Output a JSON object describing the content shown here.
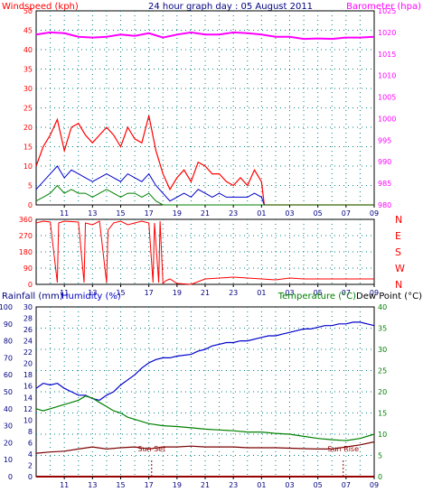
{
  "title": "24 hour graph day : 05 August 2011",
  "colors": {
    "red": "#ff0000",
    "blue": "#0000cc",
    "green": "#008000",
    "magenta": "#ff00ff",
    "black": "#000000",
    "grid": "#008080",
    "brown": "#7a0000",
    "darkred": "#990000",
    "navy": "#000080"
  },
  "chart_data": [
    {
      "id": "wind",
      "type": "line",
      "title": "24 hour graph day : 05 August 2011",
      "left_label": "Windspeed (kph)",
      "right_label": "Barometer (hpa)",
      "x_ticks": [
        "11",
        "13",
        "15",
        "17",
        "19",
        "21",
        "23",
        "01",
        "03",
        "05",
        "07",
        "09"
      ],
      "y_left_ticks": [
        0,
        5,
        10,
        15,
        20,
        25,
        30,
        35,
        40,
        45,
        50
      ],
      "y_right_ticks": [
        980,
        985,
        990,
        995,
        1000,
        1005,
        1010,
        1015,
        1020,
        1025
      ],
      "ylim_left": [
        0,
        50
      ],
      "ylim_right": [
        980,
        1025
      ],
      "series_note": "x in hours since 09:00 (0-24)",
      "gust_max": [
        [
          0,
          10
        ],
        [
          0.5,
          15
        ],
        [
          1,
          18
        ],
        [
          1.5,
          22
        ],
        [
          2,
          14
        ],
        [
          2.5,
          20
        ],
        [
          3,
          21
        ],
        [
          3.5,
          18
        ],
        [
          4,
          16
        ],
        [
          4.5,
          18
        ],
        [
          5,
          20
        ],
        [
          5.5,
          18
        ],
        [
          6,
          15
        ],
        [
          6.5,
          20
        ],
        [
          7,
          17
        ],
        [
          7.5,
          16
        ],
        [
          8,
          23
        ],
        [
          8.5,
          14
        ],
        [
          9,
          8
        ],
        [
          9.5,
          4
        ],
        [
          10,
          7
        ],
        [
          10.5,
          9
        ],
        [
          11,
          6
        ],
        [
          11.5,
          11
        ],
        [
          12,
          10
        ],
        [
          12.5,
          8
        ],
        [
          13,
          8
        ],
        [
          13.5,
          6
        ],
        [
          14,
          5
        ],
        [
          14.5,
          7
        ],
        [
          15,
          5
        ],
        [
          15.5,
          9
        ],
        [
          16,
          6
        ],
        [
          16.2,
          0
        ],
        [
          24,
          0
        ]
      ],
      "avg_wind": [
        [
          0,
          4
        ],
        [
          0.5,
          6
        ],
        [
          1,
          8
        ],
        [
          1.5,
          10
        ],
        [
          2,
          7
        ],
        [
          2.5,
          9
        ],
        [
          3,
          8
        ],
        [
          3.5,
          7
        ],
        [
          4,
          6
        ],
        [
          4.5,
          7
        ],
        [
          5,
          8
        ],
        [
          5.5,
          7
        ],
        [
          6,
          6
        ],
        [
          6.5,
          8
        ],
        [
          7,
          7
        ],
        [
          7.5,
          6
        ],
        [
          8,
          8
        ],
        [
          8.5,
          5
        ],
        [
          9,
          3
        ],
        [
          9.5,
          1
        ],
        [
          10,
          2
        ],
        [
          10.5,
          3
        ],
        [
          11,
          2
        ],
        [
          11.5,
          4
        ],
        [
          12,
          3
        ],
        [
          12.5,
          2
        ],
        [
          13,
          3
        ],
        [
          13.5,
          2
        ],
        [
          14,
          2
        ],
        [
          14.5,
          2
        ],
        [
          15,
          2
        ],
        [
          15.5,
          3
        ],
        [
          16,
          2
        ],
        [
          16.2,
          0
        ],
        [
          24,
          0
        ]
      ],
      "min_wind": [
        [
          0,
          1
        ],
        [
          0.5,
          2
        ],
        [
          1,
          3
        ],
        [
          1.5,
          5
        ],
        [
          2,
          3
        ],
        [
          2.5,
          4
        ],
        [
          3,
          3
        ],
        [
          3.5,
          3
        ],
        [
          4,
          2
        ],
        [
          4.5,
          3
        ],
        [
          5,
          4
        ],
        [
          5.5,
          3
        ],
        [
          6,
          2
        ],
        [
          6.5,
          3
        ],
        [
          7,
          3
        ],
        [
          7.5,
          2
        ],
        [
          8,
          3
        ],
        [
          8.5,
          1
        ],
        [
          9,
          0
        ],
        [
          24,
          0
        ]
      ],
      "barometer": [
        [
          0,
          1019.5
        ],
        [
          1,
          1020
        ],
        [
          2,
          1019.8
        ],
        [
          3,
          1019
        ],
        [
          4,
          1018.8
        ],
        [
          5,
          1019
        ],
        [
          6,
          1019.5
        ],
        [
          7,
          1019.2
        ],
        [
          8,
          1019.8
        ],
        [
          9,
          1018.8
        ],
        [
          10,
          1019.5
        ],
        [
          11,
          1020
        ],
        [
          12,
          1019.5
        ],
        [
          13,
          1019.5
        ],
        [
          14,
          1020
        ],
        [
          15,
          1019.8
        ],
        [
          16,
          1019.5
        ],
        [
          17,
          1019
        ],
        [
          18,
          1019
        ],
        [
          19,
          1018.5
        ],
        [
          20,
          1018.6
        ],
        [
          21,
          1018.5
        ],
        [
          22,
          1018.8
        ],
        [
          23,
          1018.8
        ],
        [
          24,
          1019
        ]
      ]
    },
    {
      "id": "direction",
      "type": "line",
      "left_ticks": [
        0,
        90,
        180,
        270,
        360
      ],
      "right_ticks": [
        "N",
        "W",
        "S",
        "E",
        "N"
      ],
      "x_ticks": [
        "11",
        "13",
        "15",
        "17",
        "19",
        "21",
        "23",
        "01",
        "03",
        "05",
        "07",
        "09"
      ],
      "ylim": [
        0,
        360
      ],
      "values": [
        [
          0,
          340
        ],
        [
          0.5,
          350
        ],
        [
          1,
          345
        ],
        [
          1.5,
          10
        ],
        [
          1.6,
          340
        ],
        [
          2,
          350
        ],
        [
          3,
          345
        ],
        [
          3.4,
          10
        ],
        [
          3.5,
          340
        ],
        [
          4,
          330
        ],
        [
          4.5,
          350
        ],
        [
          5,
          10
        ],
        [
          5.1,
          300
        ],
        [
          5.5,
          340
        ],
        [
          6,
          350
        ],
        [
          6.5,
          330
        ],
        [
          7,
          340
        ],
        [
          7.5,
          350
        ],
        [
          8,
          340
        ],
        [
          8.3,
          10
        ],
        [
          8.4,
          340
        ],
        [
          8.7,
          10
        ],
        [
          8.8,
          350
        ],
        [
          9,
          5
        ],
        [
          9.2,
          20
        ],
        [
          9.5,
          30
        ],
        [
          10,
          5
        ],
        [
          11,
          0
        ],
        [
          12,
          30
        ],
        [
          13,
          35
        ],
        [
          14,
          40
        ],
        [
          15,
          35
        ],
        [
          16,
          30
        ],
        [
          17,
          25
        ],
        [
          18,
          35
        ],
        [
          19,
          30
        ],
        [
          20,
          30
        ],
        [
          21,
          30
        ],
        [
          22,
          30
        ],
        [
          23,
          30
        ],
        [
          24,
          30
        ]
      ]
    },
    {
      "id": "temperature",
      "type": "line",
      "rain_label": "Rainfall (mm)",
      "humidity_label": "Humidity (%)",
      "temp_label": "Temperature (°C)",
      "dew_label": "Dew Point (°C)",
      "x_ticks": [
        "11",
        "13",
        "15",
        "17",
        "19",
        "21",
        "23",
        "01",
        "03",
        "05",
        "07",
        "09"
      ],
      "rain_ticks": [
        0,
        2,
        4,
        6,
        8,
        10,
        12,
        14,
        16,
        18,
        20,
        22,
        24,
        26,
        28,
        30
      ],
      "humidity_ticks": [
        0,
        10,
        20,
        30,
        40,
        50,
        60,
        70,
        80,
        90,
        100
      ],
      "temp_ticks": [
        0,
        5,
        10,
        15,
        20,
        25,
        30,
        35,
        40
      ],
      "ylim_temp": [
        0,
        40
      ],
      "ylim_humidity": [
        0,
        100
      ],
      "ylim_rain": [
        0,
        30
      ],
      "annotations": [
        {
          "text": "Sun Set",
          "x": 8.2
        },
        {
          "text": "Sun Rise",
          "x": 21.8
        }
      ],
      "humidity": [
        [
          0,
          52
        ],
        [
          0.5,
          55
        ],
        [
          1,
          54
        ],
        [
          1.5,
          55
        ],
        [
          2,
          52
        ],
        [
          2.5,
          50
        ],
        [
          3,
          48
        ],
        [
          3.5,
          48
        ],
        [
          4,
          46
        ],
        [
          4.5,
          45
        ],
        [
          5,
          48
        ],
        [
          5.5,
          50
        ],
        [
          6,
          54
        ],
        [
          6.5,
          57
        ],
        [
          7,
          60
        ],
        [
          7.5,
          64
        ],
        [
          8,
          67
        ],
        [
          8.5,
          69
        ],
        [
          9,
          70
        ],
        [
          9.5,
          70
        ],
        [
          10,
          71
        ],
        [
          11,
          72
        ],
        [
          11.5,
          74
        ],
        [
          12,
          75
        ],
        [
          12.5,
          77
        ],
        [
          13,
          78
        ],
        [
          13.5,
          79
        ],
        [
          14,
          79
        ],
        [
          14.5,
          80
        ],
        [
          15,
          80
        ],
        [
          16,
          82
        ],
        [
          16.5,
          83
        ],
        [
          17,
          83
        ],
        [
          17.5,
          84
        ],
        [
          18,
          85
        ],
        [
          18.5,
          86
        ],
        [
          19,
          87
        ],
        [
          19.5,
          87
        ],
        [
          20,
          88
        ],
        [
          20.5,
          89
        ],
        [
          21,
          89
        ],
        [
          21.5,
          90
        ],
        [
          22,
          90
        ],
        [
          22.5,
          91
        ],
        [
          23,
          91
        ],
        [
          23.5,
          90
        ],
        [
          24,
          89
        ]
      ],
      "temperature": [
        [
          0,
          16
        ],
        [
          0.5,
          15.5
        ],
        [
          1,
          16
        ],
        [
          1.5,
          16.5
        ],
        [
          2,
          17
        ],
        [
          2.5,
          17.5
        ],
        [
          3,
          18
        ],
        [
          3.5,
          19
        ],
        [
          4,
          18.5
        ],
        [
          4.5,
          17.5
        ],
        [
          5,
          16.5
        ],
        [
          5.5,
          15.5
        ],
        [
          6,
          15
        ],
        [
          6.5,
          14
        ],
        [
          7,
          13.5
        ],
        [
          7.5,
          13
        ],
        [
          8,
          12.5
        ],
        [
          9,
          12
        ],
        [
          10,
          11.8
        ],
        [
          11,
          11.5
        ],
        [
          12,
          11.2
        ],
        [
          13,
          11
        ],
        [
          14,
          10.8
        ],
        [
          15,
          10.5
        ],
        [
          16,
          10.5
        ],
        [
          17,
          10.2
        ],
        [
          18,
          10
        ],
        [
          19,
          9.5
        ],
        [
          20,
          9
        ],
        [
          21,
          8.7
        ],
        [
          22,
          8.5
        ],
        [
          23,
          9
        ],
        [
          24,
          10
        ]
      ],
      "dew_point": [
        [
          0,
          5.5
        ],
        [
          1,
          5.8
        ],
        [
          2,
          6
        ],
        [
          3,
          6.5
        ],
        [
          4,
          7
        ],
        [
          5,
          6.5
        ],
        [
          6,
          6.8
        ],
        [
          7,
          7
        ],
        [
          8,
          6.5
        ],
        [
          9,
          7
        ],
        [
          10,
          7
        ],
        [
          11,
          7.2
        ],
        [
          12,
          7
        ],
        [
          13,
          7
        ],
        [
          14,
          7
        ],
        [
          15,
          6.8
        ],
        [
          16,
          6.8
        ],
        [
          17,
          6.8
        ],
        [
          18,
          6.7
        ],
        [
          19,
          6.6
        ],
        [
          20,
          6.5
        ],
        [
          21,
          6.5
        ],
        [
          22,
          7
        ],
        [
          23,
          7.5
        ],
        [
          24,
          8.2
        ]
      ],
      "rainfall": [
        [
          0,
          0
        ],
        [
          24,
          0
        ]
      ]
    }
  ]
}
